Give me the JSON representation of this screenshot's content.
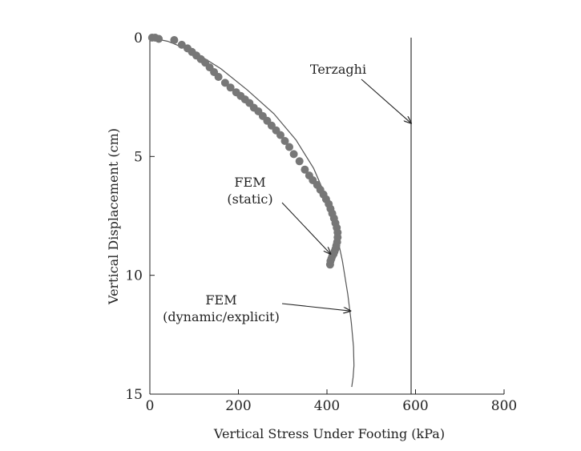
{
  "chart_data": {
    "type": "scatter",
    "xlabel": "Vertical Stress Under Footing (kPa)",
    "ylabel": "Vertical Displacement (cm)",
    "xlim": [
      0,
      800
    ],
    "ylim": [
      15,
      0
    ],
    "y_inverted": true,
    "grid": false,
    "legend": "none",
    "x_ticks": [
      0,
      200,
      400,
      600,
      800
    ],
    "y_ticks": [
      0,
      5,
      10,
      15
    ],
    "x_tick_labels": [
      "0",
      "200",
      "400",
      "600",
      "800"
    ],
    "y_tick_labels": [
      "0",
      "5",
      "10",
      "15"
    ],
    "series": [
      {
        "kind": "line",
        "color": "#333333",
        "x": [
          590,
          590
        ],
        "y": [
          0,
          15
        ]
      },
      {
        "kind": "line",
        "color": "#555555",
        "x": [
          0,
          40,
          100,
          160,
          220,
          280,
          330,
          370,
          400,
          420,
          435,
          447,
          455,
          460,
          461,
          459,
          456
        ],
        "y": [
          0,
          0.15,
          0.6,
          1.3,
          2.2,
          3.2,
          4.3,
          5.5,
          6.8,
          8.1,
          9.4,
          10.8,
          12.0,
          13.0,
          13.8,
          14.3,
          14.7
        ]
      },
      {
        "kind": "scatter",
        "color": "#777777",
        "x": [
          5,
          12,
          20,
          55,
          72,
          85,
          95,
          105,
          115,
          125,
          135,
          145,
          155,
          170,
          182,
          195,
          205,
          215,
          225,
          235,
          245,
          255,
          265,
          275,
          285,
          295,
          305,
          315,
          325,
          338,
          350,
          360,
          368,
          378,
          385,
          392,
          398,
          404,
          408,
          412,
          416,
          419,
          422,
          424,
          424,
          423,
          421,
          419,
          417,
          415,
          412,
          410,
          408,
          407
        ],
        "y": [
          0,
          0,
          0.05,
          0.1,
          0.3,
          0.45,
          0.6,
          0.75,
          0.9,
          1.05,
          1.25,
          1.45,
          1.65,
          1.9,
          2.1,
          2.3,
          2.45,
          2.6,
          2.75,
          2.95,
          3.1,
          3.3,
          3.5,
          3.7,
          3.9,
          4.1,
          4.35,
          4.6,
          4.9,
          5.2,
          5.55,
          5.8,
          6.0,
          6.2,
          6.4,
          6.6,
          6.8,
          7.0,
          7.2,
          7.4,
          7.6,
          7.8,
          8.0,
          8.2,
          8.4,
          8.6,
          8.75,
          8.9,
          9.0,
          9.1,
          9.2,
          9.3,
          9.4,
          9.55
        ]
      }
    ],
    "annotations": [
      {
        "id": "terzaghi",
        "lines": [
          "Terzaghi"
        ],
        "arrow_to": [
          590,
          3.6
        ]
      },
      {
        "id": "fem-static",
        "lines": [
          "FEM",
          "(static)"
        ],
        "arrow_to": [
          408,
          9.1
        ]
      },
      {
        "id": "fem-dynamic",
        "lines": [
          "FEM",
          "(dynamic/explicit)"
        ],
        "arrow_to": [
          453,
          11.5
        ]
      }
    ]
  }
}
